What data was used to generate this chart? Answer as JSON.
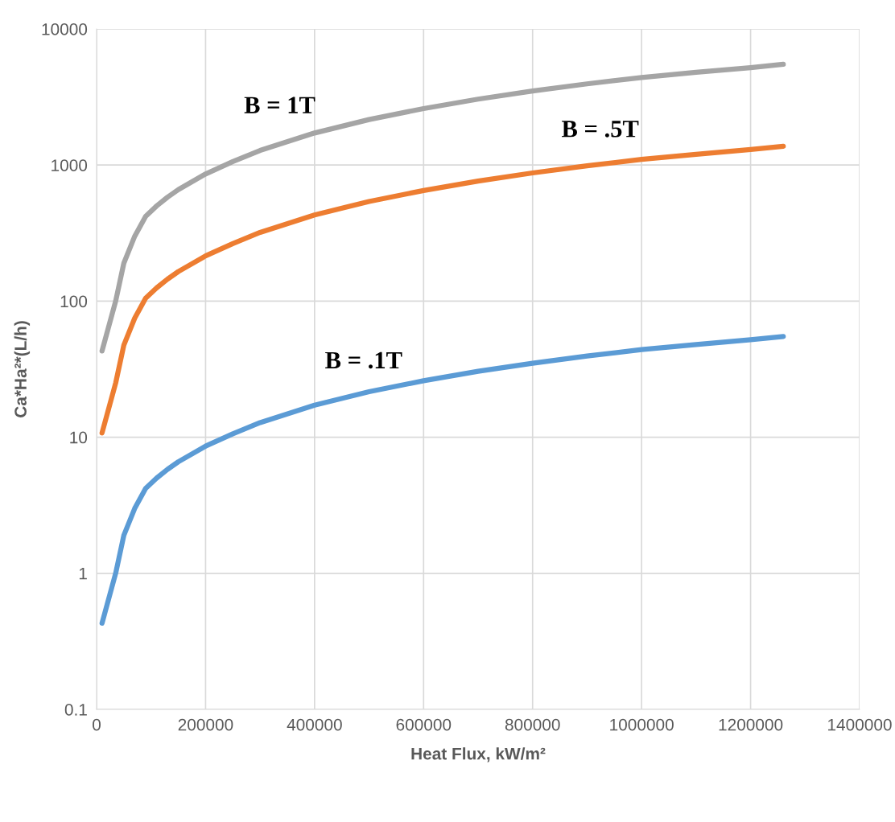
{
  "chart_data": {
    "type": "line",
    "xlabel": "Heat Flux, kW/m²",
    "ylabel": "Ca*Ha²*(L/h)",
    "log": "y",
    "grid": true,
    "marker": "none",
    "line_style": "solid",
    "x": [
      10000,
      35000,
      50000,
      70000,
      90000,
      110000,
      130000,
      150000,
      200000,
      250000,
      300000,
      400000,
      500000,
      600000,
      700000,
      800000,
      900000,
      1000000,
      1100000,
      1200000,
      1260000
    ],
    "series": [
      {
        "name": "B = 1T",
        "color": "#a5a5a5",
        "values": [
          43,
          100,
          190,
          300,
          420,
          500,
          580,
          660,
          860,
          1060,
          1280,
          1720,
          2160,
          2600,
          3050,
          3500,
          3950,
          4400,
          4800,
          5200,
          5500
        ]
      },
      {
        "name": "B = .5T",
        "color": "#ed7d31",
        "values": [
          10.75,
          25,
          47.5,
          75,
          105,
          125,
          145,
          165,
          215,
          265,
          320,
          430,
          540,
          650,
          762,
          875,
          988,
          1100,
          1200,
          1300,
          1375
        ]
      },
      {
        "name": "B = .1T",
        "color": "#5b9bd5",
        "values": [
          0.43,
          1.0,
          1.9,
          3.0,
          4.2,
          5.0,
          5.8,
          6.6,
          8.6,
          10.6,
          12.8,
          17.2,
          21.6,
          26,
          30.5,
          35,
          39.5,
          44,
          48,
          52,
          55
        ]
      }
    ],
    "xlim": [
      0,
      1400000
    ],
    "xticks": [
      0,
      200000,
      400000,
      600000,
      800000,
      1000000,
      1200000,
      1400000
    ],
    "ylim": [
      0.1,
      10000
    ],
    "yticks": [
      0.1,
      1,
      10,
      100,
      1000,
      10000
    ]
  }
}
